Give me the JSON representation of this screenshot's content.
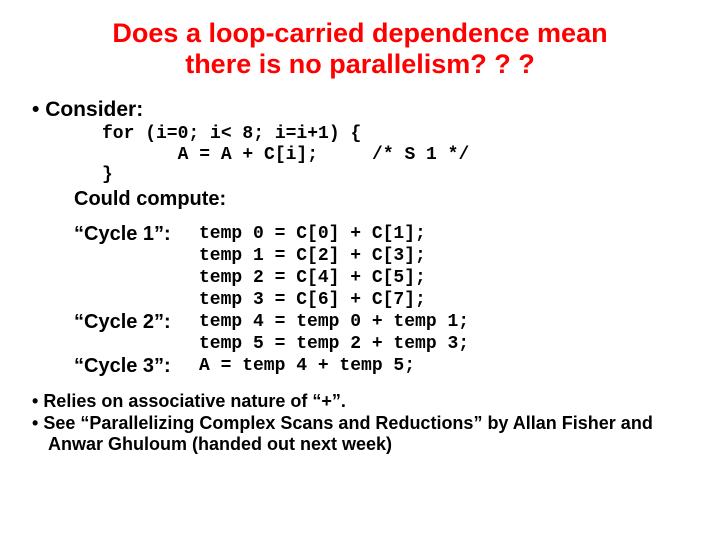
{
  "title": {
    "line1": "Does a loop-carried dependence mean",
    "line2": "there is no parallelism? ? ?"
  },
  "consider": "Consider:",
  "code": {
    "line1": "for (i=0; i< 8; i=i+1) {",
    "line2": "       A = A + C[i];     /* S 1 */",
    "line3": "}"
  },
  "could": "Could compute:",
  "cycles": {
    "c1": {
      "label": "“Cycle 1”:",
      "code": "temp 0 = C[0] + C[1];\ntemp 1 = C[2] + C[3];\ntemp 2 = C[4] + C[5];\ntemp 3 = C[6] + C[7];"
    },
    "c2": {
      "label": "“Cycle 2”:",
      "code": "temp 4 = temp 0 + temp 1;\ntemp 5 = temp 2 + temp 3;"
    },
    "c3": {
      "label": "“Cycle 3”:",
      "code": "A = temp 4 + temp 5;"
    }
  },
  "footer": {
    "b1": "Relies on associative nature of “+”.",
    "b2": "See “Parallelizing Complex Scans and Reductions” by Allan Fisher and Anwar Ghuloum (handed out next week)"
  },
  "colors": {
    "title": "#ff0000",
    "text": "#000000",
    "background": "#ffffff"
  }
}
